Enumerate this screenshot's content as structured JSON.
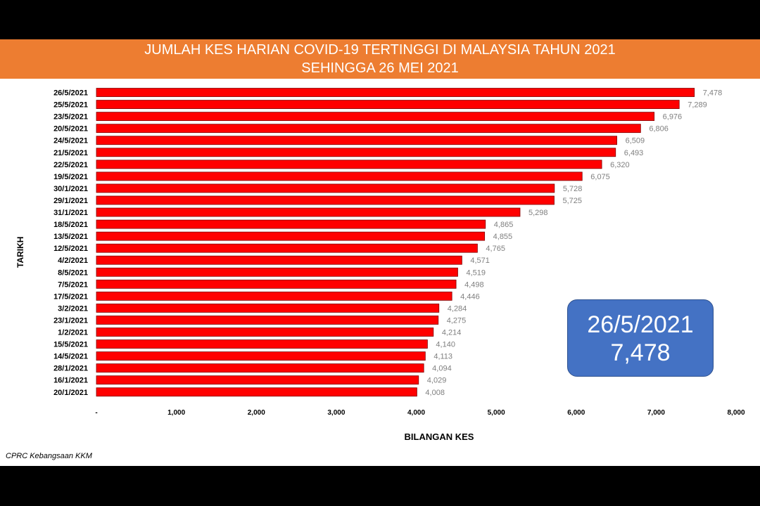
{
  "header": {
    "title_line1": "JUMLAH KES HARIAN COVID-19 TERTINGGI DI MALAYSIA TAHUN 2021",
    "title_line2": "SEHINGGA 26 MEI 2021"
  },
  "callout": {
    "date": "26/5/2021",
    "value": "7,478"
  },
  "source": "CPRC Kebangsaan KKM",
  "colors": {
    "bar": "#FF0000",
    "bar_border": "#7F0000",
    "header": "#ED7D31",
    "callout": "#4472C4",
    "value_label": "#7F7F7F"
  },
  "chart_data": {
    "type": "bar",
    "orientation": "horizontal",
    "xlabel": "BILANGAN KES",
    "ylabel": "TARIKH",
    "xlim": [
      0,
      8000
    ],
    "xticks": [
      0,
      1000,
      2000,
      3000,
      4000,
      5000,
      6000,
      7000,
      8000
    ],
    "xtick_labels": [
      "-",
      "1,000",
      "2,000",
      "3,000",
      "4,000",
      "5,000",
      "6,000",
      "7,000",
      "8,000"
    ],
    "grid": false,
    "categories": [
      "26/5/2021",
      "25/5/2021",
      "23/5/2021",
      "20/5/2021",
      "24/5/2021",
      "21/5/2021",
      "22/5/2021",
      "19/5/2021",
      "30/1/2021",
      "29/1/2021",
      "31/1/2021",
      "18/5/2021",
      "13/5/2021",
      "12/5/2021",
      "4/2/2021",
      "8/5/2021",
      "7/5/2021",
      "17/5/2021",
      "3/2/2021",
      "23/1/2021",
      "1/2/2021",
      "15/5/2021",
      "14/5/2021",
      "28/1/2021",
      "16/1/2021",
      "20/1/2021"
    ],
    "values": [
      7478,
      7289,
      6976,
      6806,
      6509,
      6493,
      6320,
      6075,
      5728,
      5725,
      5298,
      4865,
      4855,
      4765,
      4571,
      4519,
      4498,
      4446,
      4284,
      4275,
      4214,
      4140,
      4113,
      4094,
      4029,
      4008
    ],
    "value_labels": [
      "7,478",
      "7,289",
      "6,976",
      "6,806",
      "6,509",
      "6,493",
      "6,320",
      "6,075",
      "5,728",
      "5,725",
      "5,298",
      "4,865",
      "4,855",
      "4,765",
      "4,571",
      "4,519",
      "4,498",
      "4,446",
      "4,284",
      "4,275",
      "4,214",
      "4,140",
      "4,113",
      "4,094",
      "4,029",
      "4,008"
    ]
  }
}
